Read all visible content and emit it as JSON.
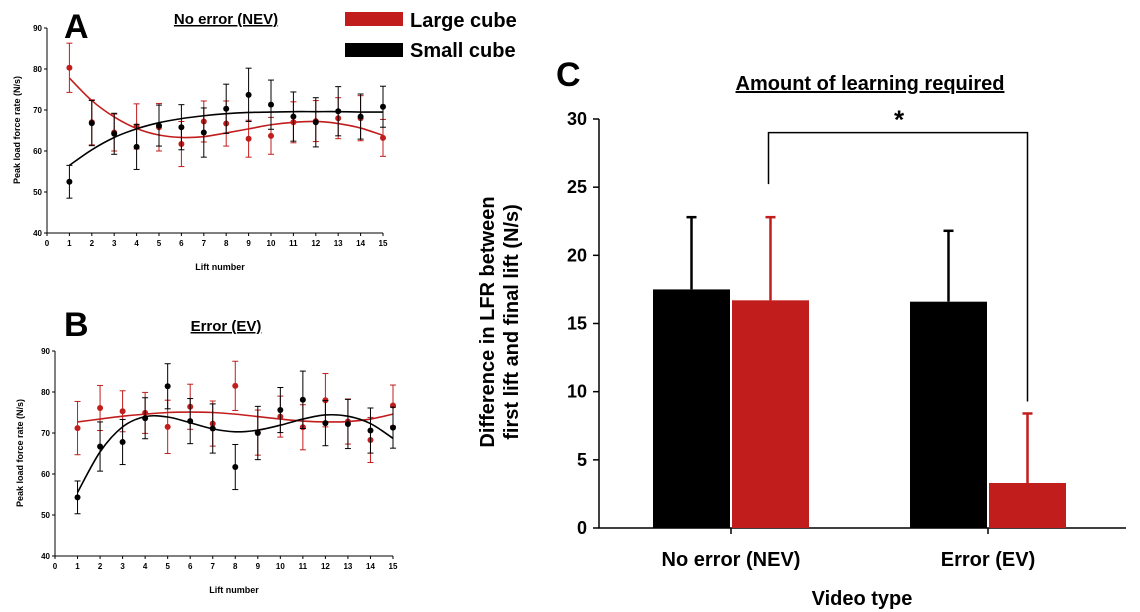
{
  "colors": {
    "large": "#c21d1d",
    "small": "#000000"
  },
  "legend": {
    "large": "Large cube",
    "small": "Small cube"
  },
  "chart_data": [
    {
      "panel": "A",
      "type": "scatter",
      "title": "No error (NEV)",
      "xlabel": "Lift number",
      "ylabel": "Peak load force rate (N/s)",
      "xlim": [
        0,
        15
      ],
      "ylim": [
        40,
        90
      ],
      "xticks": [
        "0",
        "1",
        "2",
        "3",
        "4",
        "5",
        "6",
        "7",
        "8",
        "9",
        "10",
        "11",
        "12",
        "13",
        "14",
        "15"
      ],
      "yticks": [
        "40",
        "50",
        "60",
        "70",
        "80",
        "90"
      ],
      "x": [
        1,
        2,
        3,
        4,
        5,
        6,
        7,
        8,
        9,
        10,
        11,
        12,
        13,
        14,
        15
      ],
      "series": [
        {
          "key": "large",
          "values": [
            80.3,
            67.0,
            64.5,
            66.0,
            65.8,
            61.7,
            67.2,
            66.7,
            63.0,
            63.7,
            67.0,
            67.3,
            68.0,
            68.0,
            63.2
          ],
          "errors": [
            6,
            5.5,
            4.5,
            5.5,
            5.8,
            5.5,
            5,
            5.5,
            4.5,
            4.5,
            5,
            5,
            5,
            5.5,
            4.5
          ],
          "fit": [
            77.8,
            72.3,
            68.3,
            65.5,
            63.9,
            63.3,
            63.5,
            64.4,
            65.4,
            66.4,
            67.0,
            67.2,
            66.7,
            65.6,
            63.8
          ]
        },
        {
          "key": "small",
          "values": [
            52.5,
            66.8,
            64.2,
            61.0,
            66.2,
            65.8,
            64.5,
            70.3,
            73.7,
            71.3,
            68.4,
            67.0,
            69.7,
            68.4,
            70.8
          ],
          "errors": [
            4,
            5.5,
            5,
            5.5,
            5,
            5.5,
            6,
            6,
            6.5,
            6,
            6,
            6,
            6,
            5.5,
            5
          ],
          "fit": [
            56.5,
            60.3,
            63.3,
            65.4,
            66.9,
            67.9,
            68.6,
            69.1,
            69.4,
            69.5,
            69.6,
            69.6,
            69.6,
            69.5,
            69.5
          ]
        }
      ]
    },
    {
      "panel": "B",
      "type": "scatter",
      "title": "Error (EV)",
      "xlabel": "Lift number",
      "ylabel": "Peak load force rate (N/s)",
      "xlim": [
        0,
        15
      ],
      "ylim": [
        40,
        90
      ],
      "xticks": [
        "0",
        "1",
        "2",
        "3",
        "4",
        "5",
        "6",
        "7",
        "8",
        "9",
        "10",
        "11",
        "12",
        "13",
        "14",
        "15"
      ],
      "yticks": [
        "40",
        "50",
        "60",
        "70",
        "80",
        "90"
      ],
      "x": [
        1,
        2,
        3,
        4,
        5,
        6,
        7,
        8,
        9,
        10,
        11,
        12,
        13,
        14,
        15
      ],
      "series": [
        {
          "key": "large",
          "values": [
            71.2,
            76.1,
            75.3,
            74.9,
            71.5,
            76.4,
            72.3,
            81.5,
            70.1,
            74.0,
            71.4,
            78.0,
            72.8,
            68.3,
            76.7
          ],
          "errors": [
            6.5,
            5.5,
            5,
            5,
            6.5,
            5.5,
            5.5,
            6,
            5.5,
            5,
            5.5,
            6.5,
            5.5,
            5.5,
            5
          ],
          "fit": [
            72.7,
            73.4,
            74.1,
            74.6,
            75.0,
            75.1,
            75.0,
            74.6,
            74.0,
            73.4,
            72.9,
            72.7,
            72.8,
            73.4,
            74.6
          ]
        },
        {
          "key": "small",
          "values": [
            54.3,
            66.7,
            67.8,
            73.6,
            81.4,
            72.9,
            71.1,
            61.7,
            70.0,
            75.6,
            78.1,
            72.4,
            72.2,
            70.6,
            71.3
          ],
          "errors": [
            4,
            6,
            5.5,
            5,
            5.5,
            5.5,
            6,
            5.5,
            6.5,
            5.5,
            7,
            5.5,
            6,
            5.5,
            5
          ],
          "fit": [
            55.5,
            65.4,
            71.5,
            74.0,
            73.9,
            72.5,
            71.0,
            70.3,
            70.7,
            71.9,
            73.4,
            74.4,
            74.1,
            72.3,
            68.7
          ]
        }
      ]
    },
    {
      "panel": "C",
      "type": "bar",
      "title": "Amount of learning required",
      "xlabel": "Video type",
      "ylabel": "Difference in LFR between first lift and final lift (N/s)",
      "ylim": [
        0,
        30
      ],
      "yticks": [
        "0",
        "5",
        "10",
        "15",
        "20",
        "25",
        "30"
      ],
      "categories": [
        "No error (NEV)",
        "Error (EV)"
      ],
      "series": [
        {
          "key": "small",
          "values": [
            17.5,
            16.6
          ],
          "errors": [
            5.3,
            5.2
          ]
        },
        {
          "key": "large",
          "values": [
            16.7,
            3.3
          ],
          "errors": [
            6.1,
            5.1
          ]
        }
      ],
      "annotation": "*"
    }
  ]
}
